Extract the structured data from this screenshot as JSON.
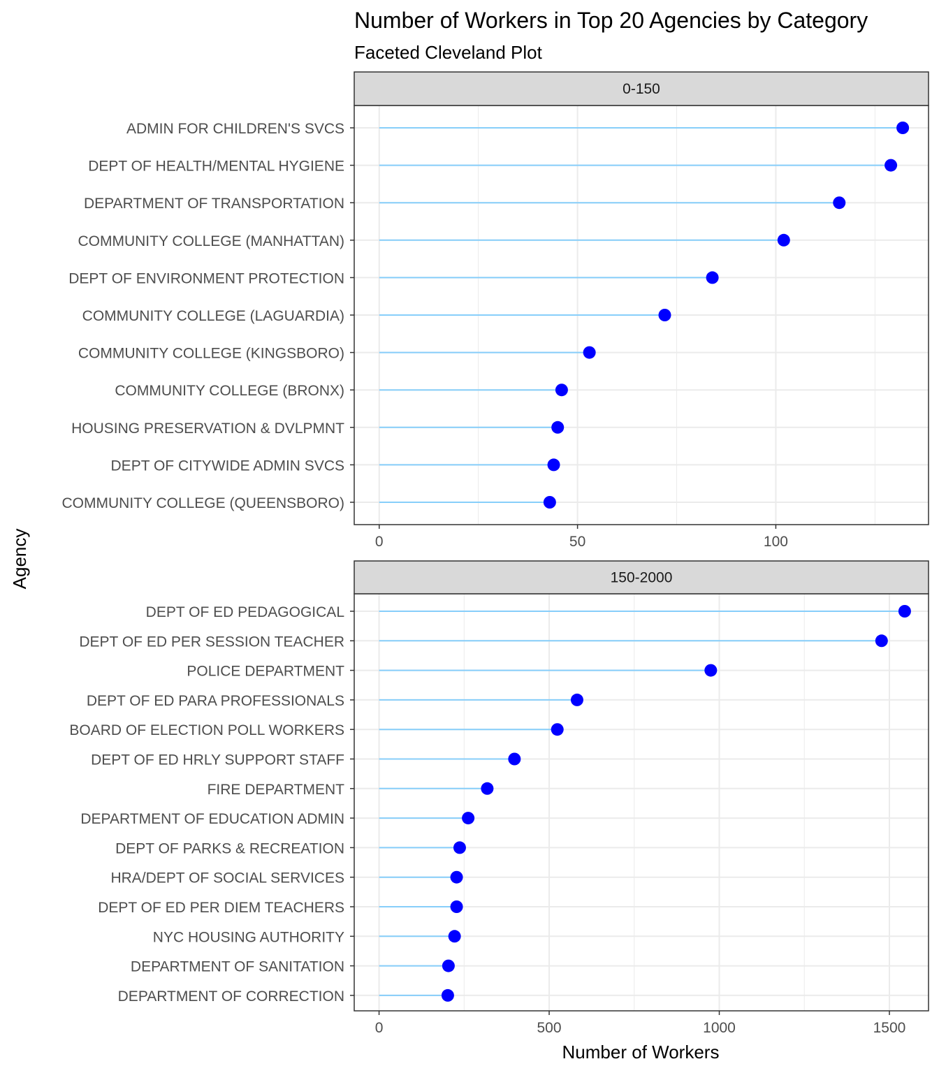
{
  "chart_data": {
    "type": "cleveland-dot",
    "title": "Number of Workers in Top 20 Agencies by Category",
    "subtitle": "Faceted Cleveland Plot",
    "xlabel": "Number of Workers",
    "ylabel": "Agency",
    "grid": true,
    "colors": {
      "segment": "#87cefa",
      "point": "#0000ff",
      "strip_fill": "#d9d9d9",
      "grid": "#ebebeb",
      "panel_border": "#333333"
    },
    "facets": [
      {
        "label": "0-150",
        "xlim": [
          -6.3,
          138.5
        ],
        "xticks": [
          0,
          50,
          100
        ],
        "categories": [
          "ADMIN FOR CHILDREN'S SVCS",
          "DEPT OF HEALTH/MENTAL HYGIENE",
          "DEPARTMENT OF TRANSPORTATION",
          "COMMUNITY COLLEGE (MANHATTAN)",
          "DEPT OF ENVIRONMENT PROTECTION",
          "COMMUNITY COLLEGE (LAGUARDIA)",
          "COMMUNITY COLLEGE (KINGSBORO)",
          "COMMUNITY COLLEGE (BRONX)",
          "HOUSING PRESERVATION & DVLPMNT",
          "DEPT OF CITYWIDE ADMIN SVCS",
          "COMMUNITY COLLEGE (QUEENSBORO)"
        ],
        "values": [
          132,
          129,
          116,
          102,
          84,
          72,
          53,
          46,
          45,
          44,
          43
        ]
      },
      {
        "label": "150-2000",
        "xlim": [
          -73,
          1615
        ],
        "xticks": [
          0,
          500,
          1000,
          1500
        ],
        "categories": [
          "DEPT OF ED PEDAGOGICAL",
          "DEPT OF ED PER SESSION TEACHER",
          "POLICE DEPARTMENT",
          "DEPT OF ED PARA PROFESSIONALS",
          "BOARD OF ELECTION POLL WORKERS",
          "DEPT OF ED HRLY SUPPORT STAFF",
          "FIRE DEPARTMENT",
          "DEPARTMENT OF EDUCATION ADMIN",
          "DEPT OF PARKS & RECREATION",
          "HRA/DEPT OF SOCIAL SERVICES",
          "DEPT OF ED PER DIEM TEACHERS",
          "NYC HOUSING AUTHORITY",
          "DEPARTMENT OF SANITATION",
          "DEPARTMENT OF CORRECTION"
        ],
        "values": [
          1545,
          1477,
          975,
          582,
          524,
          398,
          318,
          262,
          237,
          228,
          228,
          222,
          204,
          202
        ]
      }
    ]
  }
}
